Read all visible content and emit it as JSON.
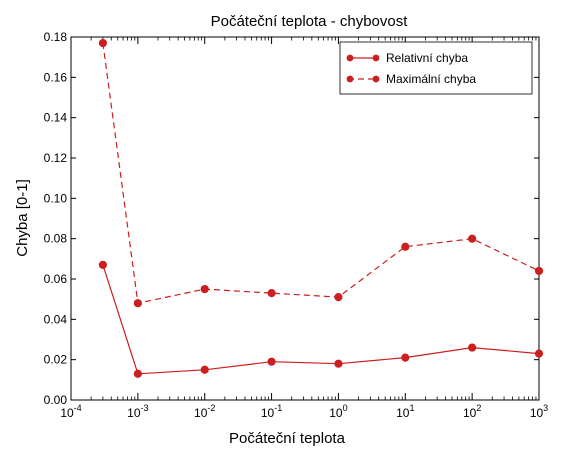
{
  "chart_data": {
    "type": "line",
    "title": "Počáteční teplota - chybovost",
    "xlabel": "Počáteční teplota",
    "ylabel": "Chyba [0-1]",
    "x_scale": "log",
    "xlim_exp": [
      -4,
      3
    ],
    "ylim": [
      0,
      0.18
    ],
    "x_ticks": [
      {
        "base": "10",
        "exp": "-4"
      },
      {
        "base": "10",
        "exp": "-3"
      },
      {
        "base": "10",
        "exp": "-2"
      },
      {
        "base": "10",
        "exp": "-1"
      },
      {
        "base": "10",
        "exp": "0"
      },
      {
        "base": "10",
        "exp": "1"
      },
      {
        "base": "10",
        "exp": "2"
      },
      {
        "base": "10",
        "exp": "3"
      }
    ],
    "y_ticks": [
      "0.00",
      "0.02",
      "0.04",
      "0.06",
      "0.08",
      "0.10",
      "0.12",
      "0.14",
      "0.16",
      "0.18"
    ],
    "x": [
      0.0003,
      0.001,
      0.01,
      0.1,
      1,
      10,
      100,
      1000
    ],
    "series": [
      {
        "name": "Relativní chyba",
        "style": "solid",
        "color": "#cc1f1f",
        "values": [
          0.067,
          0.013,
          0.015,
          0.019,
          0.018,
          0.021,
          0.026,
          0.023
        ]
      },
      {
        "name": "Maximální chyba",
        "style": "dashed",
        "color": "#cc1f1f",
        "values": [
          0.177,
          0.048,
          0.055,
          0.053,
          0.051,
          0.076,
          0.08,
          0.064
        ]
      }
    ],
    "legend_position": "top-right",
    "grid": false
  }
}
